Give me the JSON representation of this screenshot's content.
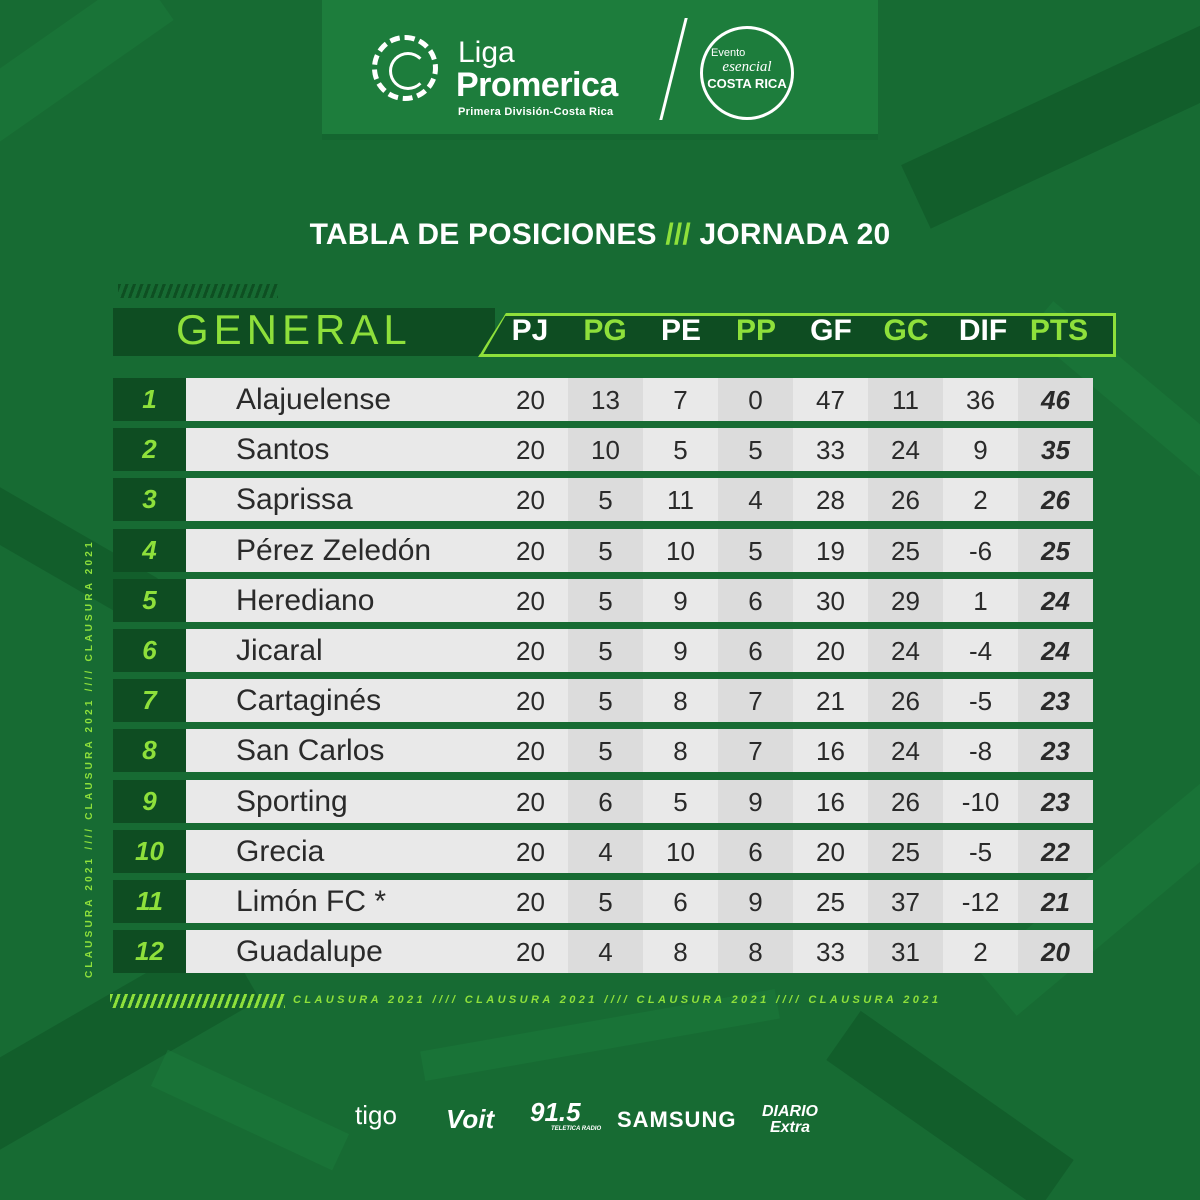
{
  "brand": {
    "line1": "Liga",
    "line2": "Promerica",
    "subtitle": "Primera División-Costa Rica",
    "event_line1": "Evento",
    "event_line2": "esencial",
    "event_line3": "COSTA RICA"
  },
  "title": {
    "left": "TABLA DE POSICIONES",
    "slashes": "///",
    "right": "JORNADA 20"
  },
  "table": {
    "section_label": "GENERAL",
    "columns": [
      "PJ",
      "PG",
      "PE",
      "PP",
      "GF",
      "GC",
      "DIF",
      "PTS"
    ],
    "rows": [
      {
        "pos": "1",
        "team": "Alajuelense",
        "pj": "20",
        "pg": "13",
        "pe": "7",
        "pp": "0",
        "gf": "47",
        "gc": "11",
        "dif": "36",
        "pts": "46"
      },
      {
        "pos": "2",
        "team": "Santos",
        "pj": "20",
        "pg": "10",
        "pe": "5",
        "pp": "5",
        "gf": "33",
        "gc": "24",
        "dif": "9",
        "pts": "35"
      },
      {
        "pos": "3",
        "team": "Saprissa",
        "pj": "20",
        "pg": "5",
        "pe": "11",
        "pp": "4",
        "gf": "28",
        "gc": "26",
        "dif": "2",
        "pts": "26"
      },
      {
        "pos": "4",
        "team": "Pérez Zeledón",
        "pj": "20",
        "pg": "5",
        "pe": "10",
        "pp": "5",
        "gf": "19",
        "gc": "25",
        "dif": "-6",
        "pts": "25"
      },
      {
        "pos": "5",
        "team": "Herediano",
        "pj": "20",
        "pg": "5",
        "pe": "9",
        "pp": "6",
        "gf": "30",
        "gc": "29",
        "dif": "1",
        "pts": "24"
      },
      {
        "pos": "6",
        "team": "Jicaral",
        "pj": "20",
        "pg": "5",
        "pe": "9",
        "pp": "6",
        "gf": "20",
        "gc": "24",
        "dif": "-4",
        "pts": "24"
      },
      {
        "pos": "7",
        "team": "Cartaginés",
        "pj": "20",
        "pg": "5",
        "pe": "8",
        "pp": "7",
        "gf": "21",
        "gc": "26",
        "dif": "-5",
        "pts": "23"
      },
      {
        "pos": "8",
        "team": "San Carlos",
        "pj": "20",
        "pg": "5",
        "pe": "8",
        "pp": "7",
        "gf": "16",
        "gc": "24",
        "dif": "-8",
        "pts": "23"
      },
      {
        "pos": "9",
        "team": "Sporting",
        "pj": "20",
        "pg": "6",
        "pe": "5",
        "pp": "9",
        "gf": "16",
        "gc": "26",
        "dif": "-10",
        "pts": "23"
      },
      {
        "pos": "10",
        "team": "Grecia",
        "pj": "20",
        "pg": "4",
        "pe": "10",
        "pp": "6",
        "gf": "20",
        "gc": "25",
        "dif": "-5",
        "pts": "22"
      },
      {
        "pos": "11",
        "team": "Limón FC *",
        "pj": "20",
        "pg": "5",
        "pe": "6",
        "pp": "9",
        "gf": "25",
        "gc": "37",
        "dif": "-12",
        "pts": "21"
      },
      {
        "pos": "12",
        "team": "Guadalupe",
        "pj": "20",
        "pg": "4",
        "pe": "8",
        "pp": "8",
        "gf": "33",
        "gc": "31",
        "dif": "2",
        "pts": "20"
      }
    ]
  },
  "side_text": "CLAUSURA 2021 //// CLAUSURA 2021 //// CLAUSURA 2021",
  "bottom_text": "CLAUSURA 2021 //// CLAUSURA 2021 //// CLAUSURA 2021 //// CLAUSURA 2021",
  "sponsors": [
    "tigo",
    "Voit",
    "91.5",
    "SAMSUNG",
    "DIARIO Extra"
  ],
  "sponsor_details": {
    "radio_sub": "TELETICA RADIO"
  },
  "colors": {
    "background": "#176b33",
    "dark_green": "#0e4d22",
    "accent_lime": "#8ee03b",
    "row_light": "#e9e9e9",
    "row_alt": "#dcdcdc",
    "text_dark": "#2a2a2a"
  }
}
